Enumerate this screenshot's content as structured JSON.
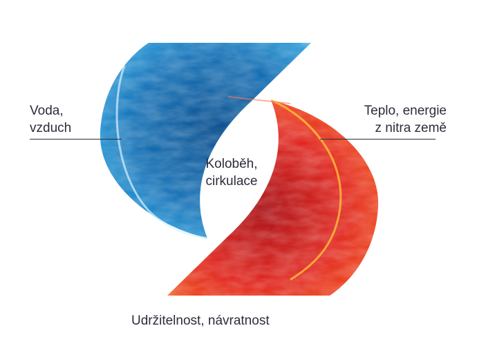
{
  "labels": {
    "left": [
      "Voda,",
      "vzduch"
    ],
    "right": [
      "Teplo, energie",
      "z nitra země"
    ],
    "center": [
      "Koloběh,",
      "cirkulace"
    ],
    "bottom": "Udržitelnost, návratnost"
  },
  "colors": {
    "water": "#1a7fc4",
    "fire": "#e0241c",
    "text": "#2b2d3a"
  }
}
